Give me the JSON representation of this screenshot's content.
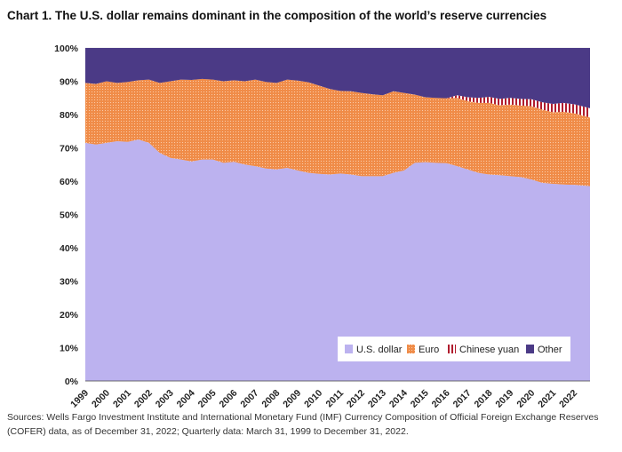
{
  "title": "Chart 1. The U.S. dollar remains dominant in the composition of the world’s reserve currencies",
  "source": "Sources: Wells Fargo Investment Institute and International Monetary Fund (IMF) Currency Composition of Official Foreign Exchange Reserves (COFER) data, as of December 31, 2022; Quarterly data: March 31, 1999 to December 31, 2022.",
  "chart_data": {
    "type": "area",
    "stacked": true,
    "x": [
      1999,
      1999.5,
      2000,
      2000.5,
      2001,
      2001.5,
      2002,
      2002.5,
      2003,
      2003.5,
      2004,
      2004.5,
      2005,
      2005.5,
      2006,
      2006.5,
      2007,
      2007.5,
      2008,
      2008.5,
      2009,
      2009.5,
      2010,
      2010.5,
      2011,
      2011.5,
      2012,
      2012.5,
      2013,
      2013.5,
      2014,
      2014.5,
      2015,
      2015.5,
      2016,
      2016.5,
      2017,
      2017.5,
      2018,
      2018.5,
      2019,
      2019.5,
      2020,
      2020.5,
      2021,
      2021.5,
      2022,
      2022.75
    ],
    "xticks": [
      "1999",
      "2000",
      "2001",
      "2002",
      "2003",
      "2004",
      "2005",
      "2006",
      "2007",
      "2008",
      "2009",
      "2010",
      "2011",
      "2012",
      "2013",
      "2014",
      "2015",
      "2016",
      "2017",
      "2018",
      "2019",
      "2020",
      "2021",
      "2022"
    ],
    "xtick_values": [
      1999,
      2000,
      2001,
      2002,
      2003,
      2004,
      2005,
      2006,
      2007,
      2008,
      2009,
      2010,
      2011,
      2012,
      2013,
      2014,
      2015,
      2016,
      2017,
      2018,
      2019,
      2020,
      2021,
      2022
    ],
    "yticks": [
      "0%",
      "10%",
      "20%",
      "30%",
      "40%",
      "50%",
      "60%",
      "70%",
      "80%",
      "90%",
      "100%"
    ],
    "ylim": [
      0,
      100
    ],
    "series": [
      {
        "name": "U.S. dollar",
        "color": "#bcb2ef",
        "values": [
          71.5,
          71.0,
          71.5,
          72.0,
          71.8,
          72.5,
          71.5,
          68.5,
          67.0,
          66.5,
          65.9,
          66.5,
          66.5,
          65.5,
          65.8,
          65.0,
          64.5,
          63.8,
          63.5,
          64.0,
          63.2,
          62.5,
          62.2,
          62.0,
          62.3,
          62.0,
          61.5,
          61.5,
          61.5,
          62.5,
          63.2,
          65.5,
          65.7,
          65.5,
          65.4,
          64.5,
          63.5,
          62.5,
          62.0,
          61.8,
          61.5,
          61.2,
          60.5,
          59.5,
          59.2,
          59.0,
          58.9,
          58.5
        ]
      },
      {
        "name": "Euro",
        "color": "#ef8a47",
        "values": [
          18.0,
          18.2,
          18.5,
          17.5,
          18.0,
          17.8,
          19.0,
          21.0,
          23.0,
          24.0,
          24.5,
          24.2,
          24.0,
          24.5,
          24.5,
          25.0,
          26.0,
          26.0,
          26.0,
          26.5,
          27.0,
          27.2,
          26.5,
          25.7,
          24.8,
          25.0,
          25.0,
          24.6,
          24.3,
          24.5,
          23.3,
          20.5,
          19.5,
          19.5,
          19.5,
          20.5,
          20.5,
          21.0,
          21.5,
          21.0,
          21.5,
          21.5,
          22.0,
          22.0,
          21.5,
          21.8,
          21.5,
          20.6
        ]
      },
      {
        "name": "Chinese yuan",
        "color": "#b01c2e",
        "values": [
          0,
          0,
          0,
          0,
          0,
          0,
          0,
          0,
          0,
          0,
          0,
          0,
          0,
          0,
          0,
          0,
          0,
          0,
          0,
          0,
          0,
          0,
          0,
          0,
          0,
          0,
          0,
          0,
          0,
          0,
          0,
          0,
          0,
          0,
          0,
          0.8,
          1.2,
          1.5,
          1.8,
          1.9,
          2.0,
          2.0,
          2.1,
          2.2,
          2.5,
          2.7,
          2.7,
          2.8
        ]
      },
      {
        "name": "Other",
        "color": "#4b3a86",
        "values": [
          10.5,
          10.8,
          10.0,
          10.5,
          10.2,
          9.7,
          9.5,
          10.5,
          10.0,
          9.5,
          9.6,
          9.3,
          9.5,
          10.0,
          9.7,
          10.0,
          9.5,
          10.2,
          10.5,
          9.5,
          9.8,
          10.3,
          11.3,
          12.3,
          12.9,
          13.0,
          13.5,
          13.9,
          14.2,
          13.0,
          13.5,
          14.0,
          14.8,
          15.0,
          15.1,
          14.2,
          14.8,
          15.0,
          14.7,
          15.3,
          15.0,
          15.3,
          15.4,
          16.3,
          16.8,
          16.5,
          16.9,
          18.1
        ]
      }
    ]
  }
}
